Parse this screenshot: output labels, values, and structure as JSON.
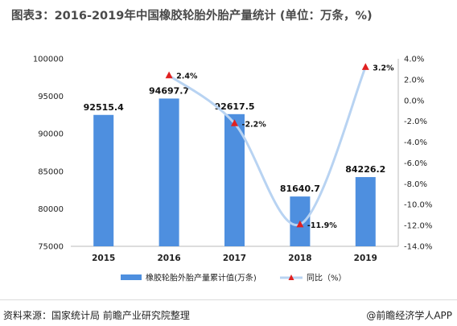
{
  "title": "图表3：2016-2019年中国橡胶轮胎外胎产量统计 (单位：万条，%)",
  "footer": {
    "source": "资料来源：国家统计局 前瞻产业研究院整理",
    "brand": "@前瞻经济学人APP"
  },
  "colors": {
    "bar": "#4e8fdf",
    "line": "#b8d3f2",
    "marker": "#e02020"
  },
  "chart_data": {
    "type": "bar",
    "categories": [
      "2015",
      "2016",
      "2017",
      "2018",
      "2019"
    ],
    "series": [
      {
        "name": "橡胶轮胎外胎产量累计值(万条)",
        "type": "bar",
        "axis": "left",
        "values": [
          92515.4,
          94697.7,
          92617.5,
          81640.7,
          84226.2
        ],
        "labels": [
          "92515.4",
          "94697.7",
          "92617.5",
          "81640.7",
          "84226.2"
        ]
      },
      {
        "name": "同比（%）",
        "type": "line",
        "axis": "right",
        "values": [
          null,
          2.4,
          -2.2,
          -11.9,
          3.2
        ],
        "labels": [
          "",
          "2.4%",
          "-2.2%",
          "-11.9%",
          "3.2%"
        ]
      }
    ],
    "left_axis": {
      "range": [
        75000,
        100000
      ],
      "ticks": [
        "75000",
        "80000",
        "85000",
        "90000",
        "95000",
        "100000"
      ]
    },
    "right_axis": {
      "range": [
        -14,
        4
      ],
      "ticks": [
        "4.0%",
        "2.0%",
        "0.0%",
        "-2.0%",
        "-4.0%",
        "-6.0%",
        "-8.0%",
        "-10.0%",
        "-12.0%",
        "-14.0%"
      ]
    },
    "grid": false,
    "legend": "bottom"
  }
}
